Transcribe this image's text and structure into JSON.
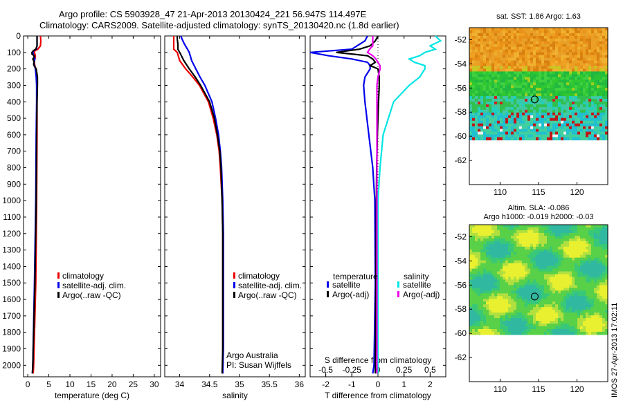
{
  "header": {
    "title_line1": "Argo profile: CS 5903928_47 21-Apr-2013 20130424_221 56.947S 114.497E",
    "title_line2": "Climatology: CARS2009. Satellite-adjusted climatology: synTS_20130420.nc (1.8d earlier)"
  },
  "colors": {
    "climatology": "#ee0000",
    "satellite": "#0000ee",
    "argo": "#000000",
    "sat_salinity": "#00e5e5",
    "argo_adj_salinity": "#ee00ee"
  },
  "chart_data": [
    {
      "type": "line",
      "name": "temperature-profile",
      "xlabel": "temperature (deg C)",
      "xlim": [
        -1,
        31.5
      ],
      "ylim": [
        2070,
        0
      ],
      "yticks": [
        0,
        100,
        200,
        300,
        400,
        500,
        600,
        700,
        800,
        900,
        1000,
        1100,
        1200,
        1300,
        1400,
        1500,
        1600,
        1700,
        1800,
        1900,
        2000
      ],
      "xticks": [
        0,
        5,
        10,
        15,
        20,
        25,
        30
      ],
      "depth": [
        0,
        30,
        60,
        80,
        90,
        100,
        110,
        120,
        130,
        140,
        150,
        160,
        170,
        180,
        200,
        250,
        300,
        400,
        600,
        1000,
        1500,
        2000,
        2050
      ],
      "series": [
        {
          "name": "climatology",
          "color_key": "climatology",
          "values": [
            3.0,
            3.1,
            3.0,
            2.4,
            1.7,
            1.6,
            1.7,
            1.8,
            1.8,
            1.7,
            1.6,
            1.6,
            1.6,
            1.7,
            1.9,
            2.1,
            2.2,
            2.2,
            2.2,
            2.1,
            1.9,
            1.4,
            1.3
          ]
        },
        {
          "name": "satellite-adj. clim.",
          "color_key": "satellite",
          "values": [
            2.2,
            2.2,
            2.2,
            2.0,
            1.4,
            1.2,
            1.3,
            1.5,
            1.6,
            1.7,
            1.6,
            1.5,
            1.5,
            1.6,
            1.8,
            2.0,
            2.1,
            2.1,
            2.0,
            1.9,
            1.6,
            1.2,
            1.1
          ]
        },
        {
          "name": "Argo(..raw -QC)",
          "color_key": "argo",
          "values": [
            2.2,
            2.2,
            2.2,
            1.9,
            1.3,
            1.0,
            1.0,
            1.5,
            1.5,
            1.2,
            1.4,
            1.5,
            1.4,
            1.5,
            2.0,
            2.3,
            2.3,
            2.2,
            2.1,
            2.0,
            1.7,
            1.2,
            1.1
          ]
        }
      ],
      "legend": [
        "climatology",
        "satellite-adj. clim.",
        "Argo(..raw -QC)"
      ]
    },
    {
      "type": "line",
      "name": "salinity-profile",
      "xlabel": "salinity",
      "xlim": [
        33.75,
        36.1
      ],
      "ylim": [
        2070,
        0
      ],
      "xticks": [
        34,
        34.5,
        35,
        35.5,
        36
      ],
      "xticklabels": [
        "34",
        "34.5",
        "35",
        "35.5",
        "36"
      ],
      "depth": [
        0,
        20,
        50,
        80,
        100,
        150,
        200,
        250,
        300,
        400,
        500,
        600,
        700,
        800,
        1000,
        1200,
        1500,
        1900,
        2050
      ],
      "series": [
        {
          "name": "climatology",
          "color_key": "climatology",
          "values": [
            33.9,
            33.9,
            33.9,
            33.9,
            33.96,
            34.0,
            34.1,
            34.22,
            34.33,
            34.48,
            34.56,
            34.62,
            34.66,
            34.68,
            34.71,
            34.72,
            34.72,
            34.72,
            34.72
          ]
        },
        {
          "name": "satellite-adj. clim.",
          "color_key": "satellite",
          "values": [
            34.02,
            34.04,
            34.08,
            34.13,
            34.16,
            34.2,
            34.27,
            34.34,
            34.42,
            34.54,
            34.6,
            34.65,
            34.68,
            34.7,
            34.72,
            34.73,
            34.73,
            34.73,
            34.72
          ]
        },
        {
          "name": "Argo(..raw -QC)",
          "color_key": "argo",
          "values": [
            33.96,
            33.96,
            33.97,
            33.97,
            34.0,
            34.07,
            34.16,
            34.26,
            34.35,
            34.5,
            34.58,
            34.63,
            34.67,
            34.69,
            34.71,
            34.72,
            34.72,
            34.72,
            34.71
          ]
        }
      ],
      "legend": [
        "climatology",
        "satellite-adj. clim.",
        "Argo(..raw -QC)"
      ],
      "annotation_1": "Argo Australia",
      "annotation_2": "PI: Susan Wijffels"
    },
    {
      "type": "line",
      "name": "difference-profile",
      "xlabel": "T difference from climatology",
      "xlabel_top": "S difference from climatology",
      "xlim": [
        -2.6,
        2.6
      ],
      "ylim": [
        2070,
        0
      ],
      "xticks": [
        -2,
        -1,
        0,
        1,
        2
      ],
      "sticks": [
        -0.5,
        -0.25,
        0,
        0.25,
        0.5
      ],
      "sticklabels": [
        "-0.5",
        "-0.25",
        "0",
        "0.25",
        "0.5"
      ],
      "depth": [
        0,
        30,
        60,
        80,
        100,
        120,
        140,
        160,
        180,
        200,
        250,
        300,
        400,
        600,
        800,
        1000,
        1500,
        2000,
        2050
      ],
      "series": [
        {
          "name": "temperature satellite",
          "color_key": "satellite",
          "values": [
            -0.4,
            -0.5,
            -0.8,
            -1.0,
            -2.6,
            -1.9,
            -1.0,
            -0.4,
            -0.3,
            -0.3,
            -0.5,
            -0.55,
            -0.5,
            -0.35,
            -0.2,
            -0.12,
            -0.1,
            -0.15,
            -0.2
          ]
        },
        {
          "name": "temperature Argo(-adj)",
          "color_key": "argo",
          "values": [
            0.0,
            -0.1,
            -0.3,
            -0.7,
            -1.6,
            -0.4,
            -0.2,
            -0.1,
            -0.3,
            0.0,
            0.05,
            0.05,
            0.02,
            -0.02,
            -0.05,
            -0.06,
            -0.08,
            -0.1,
            -0.1
          ]
        },
        {
          "name": "salinity satellite",
          "color_key": "sat_salinity",
          "values": [
            0.55,
            0.6,
            0.5,
            0.55,
            0.45,
            0.4,
            0.3,
            0.35,
            0.45,
            0.45,
            0.4,
            0.3,
            0.15,
            0.05,
            0.02,
            0.0,
            0.0,
            0.0,
            0.0
          ]
        },
        {
          "name": "salinity Argo(-adj)",
          "color_key": "argo_adj_salinity",
          "values": [
            -0.05,
            -0.05,
            -0.05,
            -0.08,
            -0.1,
            -0.05,
            -0.02,
            0.0,
            0.02,
            0.02,
            0.0,
            -0.01,
            -0.01,
            -0.01,
            -0.01,
            -0.01,
            -0.01,
            -0.01,
            -0.01
          ]
        }
      ],
      "legend_temperature_title": "temperature",
      "legend_salinity_title": "salinity",
      "legend_satellite": "satellite",
      "legend_argo_adj": "Argo(-adj)"
    },
    {
      "type": "heatmap",
      "name": "sst-map",
      "title": "sat. SST: 1.86  Argo: 1.63",
      "xlim": [
        106,
        124
      ],
      "ylim": [
        -64,
        -51
      ],
      "xticks": [
        110,
        115,
        120
      ],
      "yticks": [
        -52,
        -54,
        -56,
        -58,
        -60,
        -62
      ],
      "data_bottom_lat": -60.3,
      "argo_position": {
        "lon": 114.497,
        "lat": -56.947
      }
    },
    {
      "type": "heatmap",
      "name": "sla-map",
      "title_line1": "Altim. SLA: -0.086",
      "title_line2": "Argo h1000: -0.019 h2000: -0.03",
      "xlim": [
        106,
        124
      ],
      "ylim": [
        -64,
        -51
      ],
      "xticks": [
        110,
        115,
        120
      ],
      "yticks": [
        -52,
        -54,
        -56,
        -58,
        -60,
        -62
      ],
      "data_bottom_lat": -60.1,
      "argo_position": {
        "lon": 114.497,
        "lat": -56.947
      }
    }
  ],
  "footer": {
    "imos_stamp": "IMOS 27-Apr-2013 17:02:11"
  }
}
